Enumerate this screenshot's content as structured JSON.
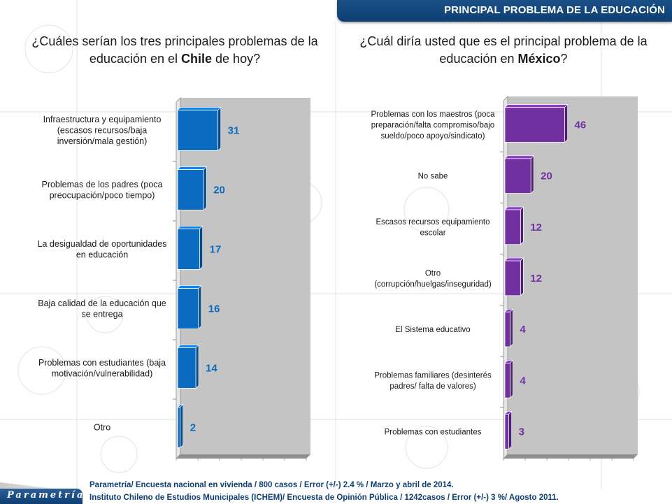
{
  "header": {
    "title": "PRINCIPAL PROBLEMA DE LA EDUCACIÓN"
  },
  "questions": {
    "left": {
      "before": "¿Cuáles serían los tres principales problemas de la educación en el ",
      "bold": "Chile",
      "after": " de hoy?"
    },
    "right": {
      "before": "¿Cuál diría usted que es el principal problema de la educación en ",
      "bold": "México",
      "after": "?"
    }
  },
  "colors": {
    "header": "#0d3f73",
    "chile_bar": "#0a6bc1",
    "mexico_bar": "#7030a0",
    "plot_bg": "#c4c4c4",
    "footer_text": "#0d3f73"
  },
  "chart_data": [
    {
      "type": "bar",
      "orientation": "horizontal",
      "title": "¿Cuáles serían los tres principales problemas de la educación en el Chile de hoy?",
      "categories": [
        [
          "Infraestructura y equipamiento",
          "(escasos recursos/baja",
          "inversión/mala gestión)"
        ],
        [
          "Problemas de los padres (poca",
          "preocupación/poco tiempo)"
        ],
        [
          "La desigualdad de oportunidades",
          "en educación"
        ],
        [
          "Baja calidad de la educación que",
          "se entrega"
        ],
        [
          "Problemas con estudiantes (baja",
          "motivación/vulnerabilidad)"
        ],
        [
          "Otro"
        ]
      ],
      "values": [
        31,
        20,
        17,
        16,
        14,
        2
      ],
      "value_labels": [
        "31",
        "20",
        "17",
        "16",
        "14",
        "2"
      ],
      "xlim": [
        0,
        100
      ],
      "grid": false,
      "style": "3d",
      "color": "#0a6bc1"
    },
    {
      "type": "bar",
      "orientation": "horizontal",
      "title": "¿Cuál diría usted que es el principal problema de la educación en México?",
      "categories": [
        [
          "Problemas con los maestros (poca",
          "preparación/falta compromiso/bajo",
          "sueldo/poco apoyo/sindicato)"
        ],
        [
          "No sabe"
        ],
        [
          "Escasos recursos equipamiento",
          "escolar"
        ],
        [
          "Otro",
          "(corrupción/huelgas/inseguridad)"
        ],
        [
          "El Sistema educativo"
        ],
        [
          "Problemas familiares (desinterés",
          "padres/ falta de valores)"
        ],
        [
          "Problemas con estudiantes"
        ]
      ],
      "values": [
        46,
        20,
        12,
        12,
        4,
        4,
        3
      ],
      "value_labels": [
        "46",
        "20",
        "12",
        "12",
        "4",
        "4",
        "3"
      ],
      "xlim": [
        0,
        100
      ],
      "grid": false,
      "style": "3d",
      "color": "#7030a0"
    }
  ],
  "footer": {
    "line1": "Parametría/ Encuesta nacional en vivienda / 800 casos / Error (+/-) 2.4 % / Marzo y abril de 2014.",
    "line2": "Instituto Chileno de Estudios Municipales (ICHEM)/ Encuesta de Opinión Pública / 1242casos / Error (+/-) 3 %/ Agosto 2011.",
    "logo": "Parametría"
  }
}
